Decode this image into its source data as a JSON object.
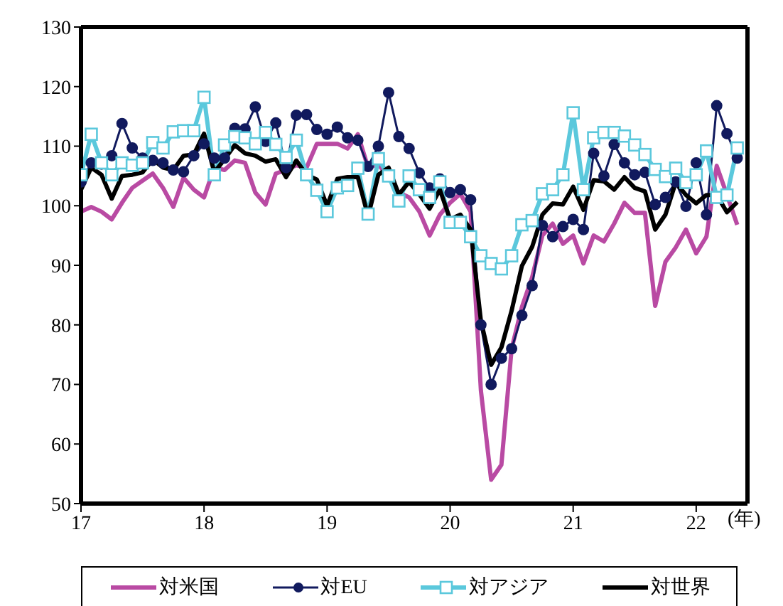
{
  "chart_data": {
    "type": "line",
    "xlabel": "(年)",
    "x": [
      "2017-01",
      "2017-02",
      "2017-03",
      "2017-04",
      "2017-05",
      "2017-06",
      "2017-07",
      "2017-08",
      "2017-09",
      "2017-10",
      "2017-11",
      "2017-12",
      "2018-01",
      "2018-02",
      "2018-03",
      "2018-04",
      "2018-05",
      "2018-06",
      "2018-07",
      "2018-08",
      "2018-09",
      "2018-10",
      "2018-11",
      "2018-12",
      "2019-01",
      "2019-02",
      "2019-03",
      "2019-04",
      "2019-05",
      "2019-06",
      "2019-07",
      "2019-08",
      "2019-09",
      "2019-10",
      "2019-11",
      "2019-12",
      "2020-01",
      "2020-02",
      "2020-03",
      "2020-04",
      "2020-05",
      "2020-06",
      "2020-07",
      "2020-08",
      "2020-09",
      "2020-10",
      "2020-11",
      "2020-12",
      "2021-01",
      "2021-02",
      "2021-03",
      "2021-04",
      "2021-05",
      "2021-06",
      "2021-07",
      "2021-08",
      "2021-09",
      "2021-10",
      "2021-11",
      "2021-12",
      "2022-01",
      "2022-02",
      "2022-03",
      "2022-04",
      "2022-05"
    ],
    "series": [
      {
        "name": "対米国",
        "color": "#b94aa3",
        "marker": "none",
        "values": [
          99,
          99.8,
          99,
          97.7,
          100.5,
          103,
          104.2,
          105.4,
          103,
          99.8,
          104.7,
          102.7,
          101.4,
          106.4,
          106,
          107.6,
          107.2,
          102.2,
          100.2,
          105.4,
          106,
          106.8,
          106.4,
          110.4,
          110.4,
          110.4,
          109.6,
          112,
          106.4,
          107,
          104.7,
          102.2,
          101.4,
          99,
          95,
          98.5,
          100.5,
          102,
          99,
          69,
          54,
          56.5,
          76,
          83,
          88,
          95,
          97,
          93.6,
          95,
          90.3,
          95,
          94,
          97,
          100.5,
          98.8,
          98.8,
          83.2,
          90.6,
          93,
          96,
          92,
          94.8,
          106.7,
          101.8,
          96.8
        ]
      },
      {
        "name": "対EU",
        "color": "#111a5e",
        "marker": "circle",
        "values": [
          104,
          107.2,
          107,
          108.4,
          113.8,
          109.7,
          108,
          107.6,
          107.2,
          106,
          105.7,
          108.4,
          110.4,
          108,
          108,
          113,
          112.9,
          116.6,
          110.8,
          113.9,
          106.4,
          115.2,
          115.3,
          112.8,
          112,
          113.2,
          111.4,
          111,
          106.6,
          110,
          119,
          111.6,
          109.6,
          105.5,
          103,
          104.5,
          102.2,
          102.7,
          101,
          80,
          70,
          74.4,
          76,
          81.6,
          86.6,
          96.7,
          94.8,
          96.5,
          97.7,
          96,
          108.8,
          105,
          110.3,
          107.2,
          105.2,
          105.6,
          100.2,
          101.4,
          104,
          99.9,
          107.2,
          98.5,
          116.8,
          112.1,
          108
        ]
      },
      {
        "name": "対アジア",
        "color": "#5bc8dc",
        "marker": "square",
        "values": [
          105.2,
          112,
          107.2,
          105.2,
          107.2,
          106.8,
          107.2,
          110.6,
          109.7,
          112.4,
          112.6,
          112.6,
          118.2,
          105.2,
          110.2,
          111.6,
          111.4,
          110.4,
          112.3,
          110.3,
          108.1,
          111,
          105.2,
          102.6,
          99,
          103,
          103.4,
          106.3,
          98.6,
          107.9,
          105,
          100.8,
          105,
          102.7,
          101.4,
          104,
          97.2,
          97.2,
          94.8,
          91.6,
          90.3,
          89.4,
          91.6,
          96.8,
          97.5,
          102,
          102.7,
          105.2,
          115.6,
          102.7,
          111.4,
          112.3,
          112.3,
          111.7,
          110.2,
          108.6,
          106.1,
          104.9,
          106.3,
          103.9,
          105.2,
          109.2,
          101.4,
          101.8,
          109.7
        ]
      },
      {
        "name": "対世界",
        "color": "#000000",
        "marker": "none",
        "values": [
          102.7,
          106.4,
          105.2,
          101.2,
          105,
          105.2,
          105.6,
          107.8,
          106.4,
          106,
          108.4,
          108.6,
          112.1,
          105.6,
          107.8,
          110.2,
          108.8,
          108.4,
          107.4,
          107.8,
          104.8,
          107.6,
          105.2,
          104.4,
          100,
          104.5,
          104.8,
          104.8,
          98.2,
          105.2,
          106.4,
          101.9,
          104,
          101.9,
          99.5,
          102.7,
          97.7,
          98.5,
          96,
          80.7,
          73.3,
          76.2,
          82.4,
          89.9,
          93.1,
          98.5,
          100.4,
          100.2,
          103.2,
          99.3,
          104.3,
          104.1,
          102.7,
          104.8,
          103,
          102.4,
          96,
          98.5,
          103.9,
          101.8,
          100.4,
          101.8,
          101.8,
          98.9,
          100.6
        ]
      }
    ],
    "xlim": [
      "2017-01",
      "2022-06"
    ],
    "xticks": [
      {
        "value": "2017-01",
        "label": "17"
      },
      {
        "value": "2018-01",
        "label": "18"
      },
      {
        "value": "2019-01",
        "label": "19"
      },
      {
        "value": "2020-01",
        "label": "20"
      },
      {
        "value": "2021-01",
        "label": "21"
      },
      {
        "value": "2022-01",
        "label": "22"
      }
    ],
    "ylim": [
      50,
      130
    ],
    "yticks": [
      50,
      60,
      70,
      80,
      90,
      100,
      110,
      120,
      130
    ],
    "grid": false,
    "legend": "bottom"
  }
}
